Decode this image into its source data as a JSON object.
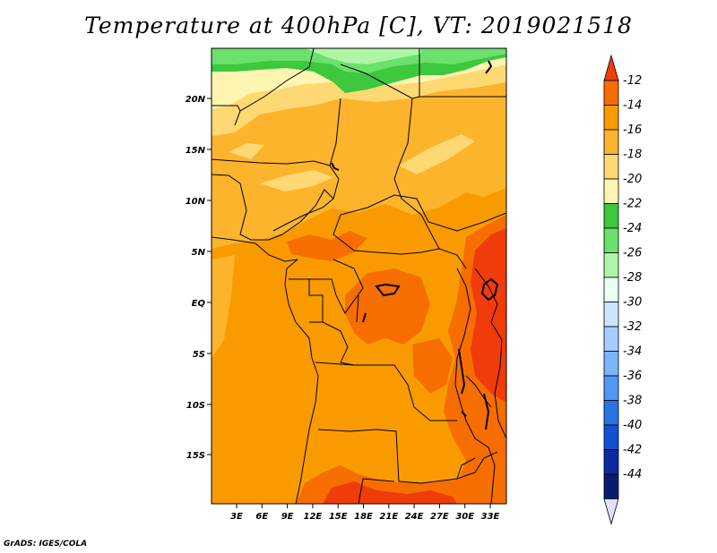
{
  "title": "Temperature at 400hPa [C], VT: 2019021518",
  "footer": "GrADS: IGES/COLA",
  "map": {
    "lat_ticks": [
      "20N",
      "15N",
      "10N",
      "5N",
      "EQ",
      "5S",
      "10S",
      "15S"
    ],
    "lon_ticks": [
      "3E",
      "6E",
      "9E",
      "12E",
      "15E",
      "18E",
      "21E",
      "24E",
      "27E",
      "30E",
      "33E"
    ]
  },
  "colorbar": {
    "labels": [
      "-12",
      "-14",
      "-16",
      "-18",
      "-20",
      "-22",
      "-24",
      "-26",
      "-28",
      "-30",
      "-32",
      "-34",
      "-36",
      "-38",
      "-40",
      "-42",
      "-44"
    ],
    "colors": [
      "#f03c0a",
      "#f66e00",
      "#f99b00",
      "#fbb42c",
      "#fdd873",
      "#fff5b0",
      "#3dc83d",
      "#69e16b",
      "#aef5a5",
      "#e8fff2",
      "#cde4ff",
      "#a6cdff",
      "#7bb4ff",
      "#5096f5",
      "#2873e6",
      "#1451d2",
      "#0d2aa0",
      "#081c6e",
      "#e1e1ff"
    ]
  }
}
